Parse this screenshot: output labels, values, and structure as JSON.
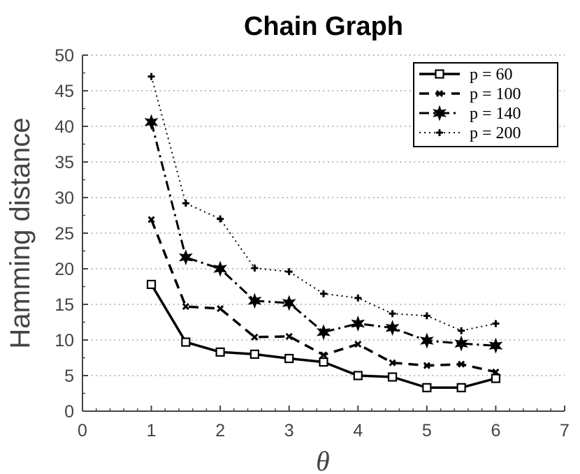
{
  "chart_data": {
    "type": "line",
    "title": "Chain Graph",
    "xlabel": "θ",
    "ylabel": "Hamming distance",
    "xlim": [
      0,
      7
    ],
    "ylim": [
      0,
      50
    ],
    "xticks": [
      0,
      1,
      2,
      3,
      4,
      5,
      6,
      7
    ],
    "yticks": [
      0,
      5,
      10,
      15,
      20,
      25,
      30,
      35,
      40,
      45,
      50
    ],
    "grid": "horizontal-dotted",
    "legend_position": "top-right",
    "x": [
      1,
      1.5,
      2,
      2.5,
      3,
      3.5,
      4,
      4.5,
      5,
      5.5,
      6
    ],
    "series": [
      {
        "name": "p = 60",
        "style": "solid",
        "marker": "square",
        "values": [
          17.8,
          9.7,
          8.3,
          8.0,
          7.4,
          6.9,
          5.0,
          4.8,
          3.3,
          3.3,
          4.6
        ]
      },
      {
        "name": "p = 100",
        "style": "dashed",
        "marker": "x",
        "values": [
          26.9,
          14.7,
          14.4,
          10.4,
          10.5,
          7.9,
          9.4,
          6.8,
          6.4,
          6.6,
          5.5
        ]
      },
      {
        "name": "p = 140",
        "style": "dashdot",
        "marker": "star",
        "values": [
          40.6,
          21.6,
          20.0,
          15.5,
          15.2,
          11.1,
          12.3,
          11.7,
          9.9,
          9.5,
          9.2
        ]
      },
      {
        "name": "p = 200",
        "style": "dotted",
        "marker": "plus",
        "values": [
          47.0,
          29.2,
          27.0,
          20.1,
          19.6,
          16.5,
          15.9,
          13.7,
          13.4,
          11.3,
          12.3
        ]
      }
    ]
  }
}
